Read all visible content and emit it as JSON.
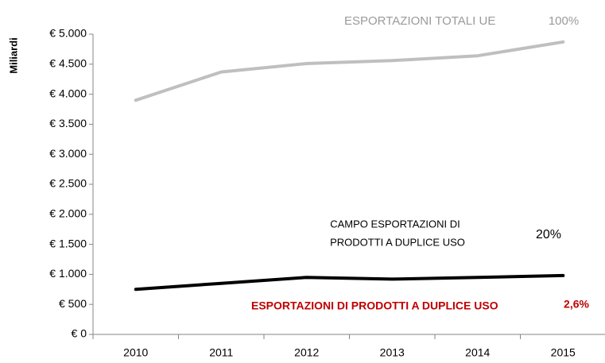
{
  "chart_data": {
    "type": "line",
    "y_label": "Miliardi",
    "categories": [
      "2010",
      "2011",
      "2012",
      "2013",
      "2014",
      "2015"
    ],
    "series": [
      {
        "name": "ESPORTAZIONI TOTALI UE",
        "color": "#bfbfbf",
        "values": [
          3900,
          4370,
          4510,
          4560,
          4640,
          4870
        ]
      },
      {
        "name": "ESPORTAZIONI DI PRODOTTI A DUPLICE USO",
        "color": "#000000",
        "values": [
          750,
          850,
          950,
          920,
          950,
          980
        ]
      }
    ],
    "annotations": [
      "100%",
      "CAMPO ESPORTAZIONI DI",
      "PRODOTTI A DUPLICE USO",
      "20%",
      "2,6%"
    ],
    "ylim": [
      0,
      5000
    ],
    "yticks": [
      {
        "value": 0,
        "label": "€ 0"
      },
      {
        "value": 500,
        "label": "€ 500"
      },
      {
        "value": 1000,
        "label": "€ 1.000"
      },
      {
        "value": 1500,
        "label": "€ 1.500"
      },
      {
        "value": 2000,
        "label": "€ 2.000"
      },
      {
        "value": 2500,
        "label": "€ 2.500"
      },
      {
        "value": 3000,
        "label": "€ 3.000"
      },
      {
        "value": 3500,
        "label": "€ 3.500"
      },
      {
        "value": 4000,
        "label": "€ 4.000"
      },
      {
        "value": 4500,
        "label": "€ 4.500"
      },
      {
        "value": 5000,
        "label": "€ 5.000"
      }
    ],
    "grid": false
  }
}
